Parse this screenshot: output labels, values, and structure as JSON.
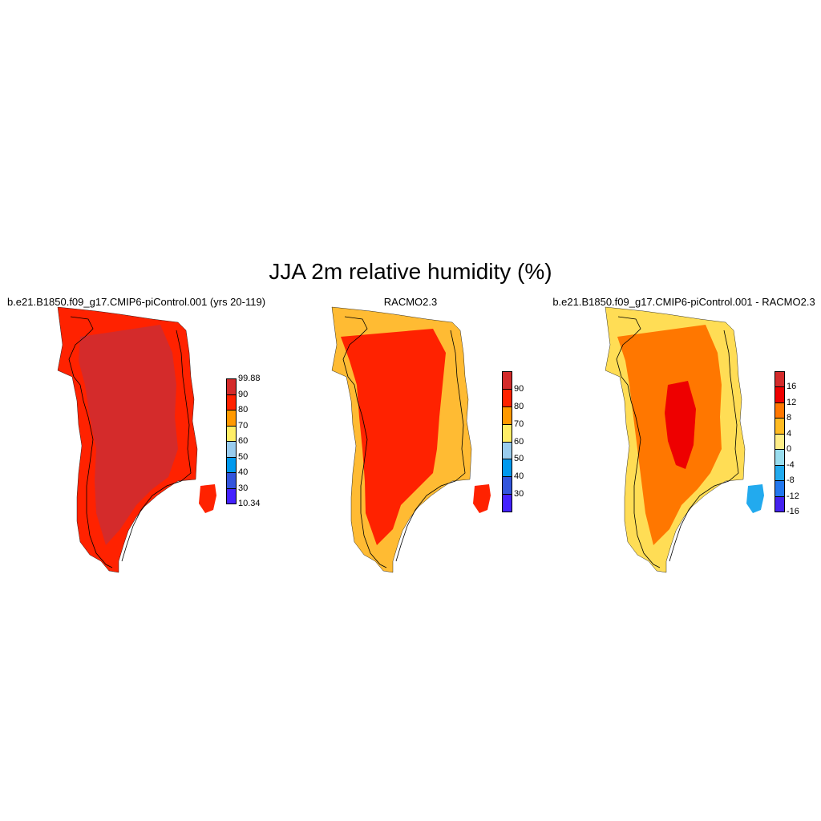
{
  "title": "JJA 2m relative humidity (%)",
  "panels": [
    {
      "title": "b.e21.B1850.f09_g17.CMIP6-piControl.001 (yrs 20-119)",
      "variable": "JJA 2m relative humidity",
      "colorbar": {
        "labels": [
          "99.88",
          "90",
          "80",
          "70",
          "60",
          "50",
          "40",
          "30",
          "10.34"
        ],
        "label_mode": "edges",
        "colors": [
          "#d42b2b",
          "#ff2200",
          "#ff9900",
          "#ffee66",
          "#99ccee",
          "#0099ee",
          "#3355dd",
          "#4422ff"
        ]
      }
    },
    {
      "title": "RACMO2.3",
      "variable": "JJA 2m relative humidity",
      "colorbar": {
        "labels": [
          "90",
          "80",
          "70",
          "60",
          "50",
          "40",
          "30"
        ],
        "label_mode": "inner",
        "colors": [
          "#d42b2b",
          "#ff2200",
          "#ff9900",
          "#ffee66",
          "#99ccee",
          "#0099ee",
          "#3355dd",
          "#4422ff"
        ]
      }
    },
    {
      "title": "b.e21.B1850.f09_g17.CMIP6-piControl.001 - RACMO2.3",
      "variable": "JJA 2m relative humidity difference",
      "colorbar": {
        "labels": [
          "16",
          "12",
          "8",
          "4",
          "0",
          "-4",
          "-8",
          "-12",
          "-16"
        ],
        "label_mode": "inner",
        "colors": [
          "#d42b2b",
          "#ee0000",
          "#ff7700",
          "#ffbb22",
          "#ffee88",
          "#99ddee",
          "#22aaee",
          "#2277ee",
          "#4422ee"
        ]
      }
    }
  ]
}
